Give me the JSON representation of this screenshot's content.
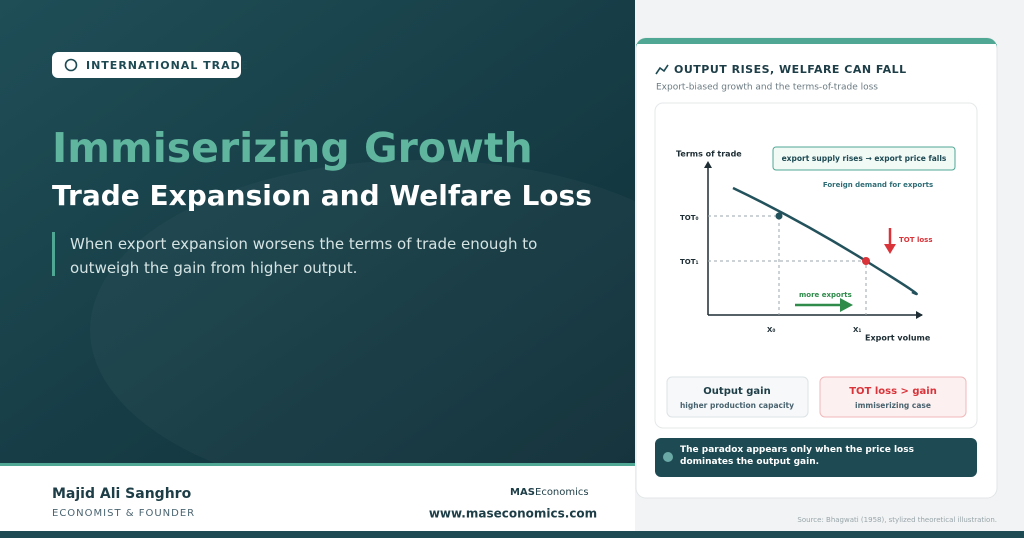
{
  "badge": "INTERNATIONAL TRADE",
  "header": {
    "title": "Immiserizing Growth",
    "subtitle": "Trade Expansion and Welfare Loss",
    "description": "When export expansion worsens the terms of trade enough to outweigh the gain from higher output."
  },
  "footer": {
    "author": "Majid Ali Sanghro",
    "role": "ECONOMIST & FOUNDER",
    "logo_prefix": "MAS",
    "logo_suffix": "Economics",
    "website": "www.maseconomics.com"
  },
  "card": {
    "title": "OUTPUT RISES, WELFARE CAN FALL",
    "subtitle": "Export-biased growth and the terms-of-trade loss",
    "diagram": {
      "y_axis_label": "Terms of trade",
      "x_axis_label": "Export volume",
      "tot0": "TOT₀",
      "tot1": "TOT₁",
      "x0": "X₀",
      "x1": "X₁",
      "callout": "export supply rises → export price falls",
      "curve_label": "Foreign demand for exports",
      "loss_label": "TOT loss",
      "exports_label": "more exports"
    },
    "boxes": [
      {
        "title": "Output gain",
        "text": "higher production capacity"
      },
      {
        "title": "TOT loss > gain",
        "text": "immiserizing case"
      }
    ],
    "note": "The paradox appears only when the price loss dominates the output gain."
  },
  "source": "Source: Bhagwati (1958), stylized theoretical illustration."
}
